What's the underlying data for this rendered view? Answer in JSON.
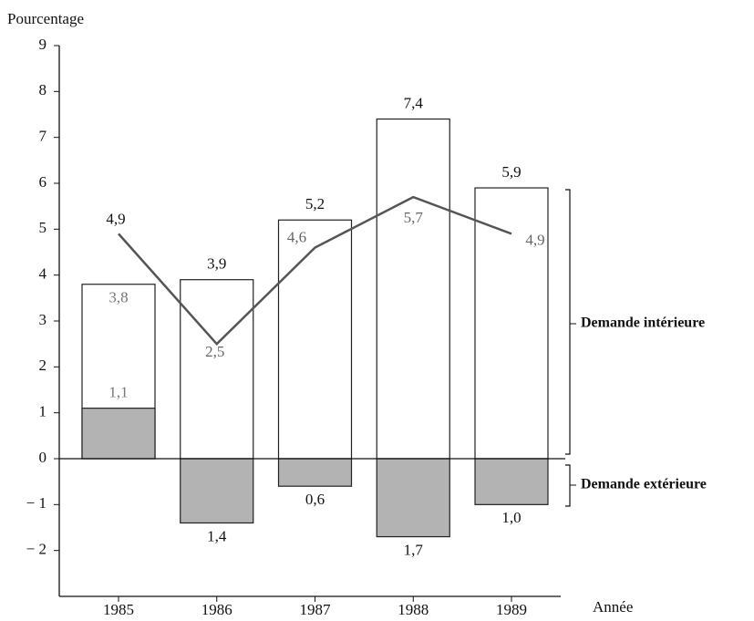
{
  "chart_data": {
    "type": "bar",
    "y_axis_label": "Pourcentage",
    "x_axis_label": "Année",
    "categories": [
      "1985",
      "1986",
      "1987",
      "1988",
      "1989"
    ],
    "series": [
      {
        "color": "#ffffff",
        "values": [
          3.8,
          3.9,
          5.2,
          7.4,
          5.9
        ],
        "value_labels": [
          "3,8",
          "3,9",
          "5,2",
          "7,4",
          "5,9"
        ]
      },
      {
        "color": "#b3b3b3",
        "values": [
          1.1,
          -1.4,
          -0.6,
          -1.7,
          -1.0
        ],
        "value_labels": [
          "1,1",
          "1,4",
          "0,6",
          "1,7",
          "1,0"
        ]
      },
      {
        "type": "line",
        "color": "#555555",
        "values": [
          4.9,
          2.5,
          4.6,
          5.7,
          4.9
        ],
        "value_labels": [
          "4,9",
          "2,5",
          "4,6",
          "5,7",
          "4,9"
        ]
      }
    ],
    "ylim": [
      -3,
      9
    ],
    "yticks": [
      {
        "value": -2,
        "label": "− 2"
      },
      {
        "value": -1,
        "label": "− 1"
      },
      0,
      1,
      2,
      3,
      4,
      5,
      6,
      7,
      8,
      9
    ],
    "annotations": [
      "Demande intérieure",
      "Demande extérieure"
    ]
  }
}
